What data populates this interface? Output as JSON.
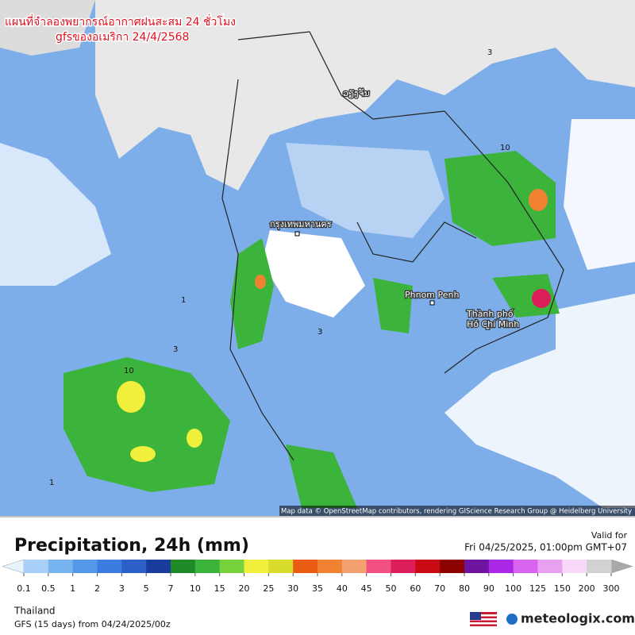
{
  "map": {
    "title_lines": [
      "แผนที่จำลองพยากรณ์อากาศฝนสะสม 24 ชั่วโมง",
      "gfsของอเมริกา 24/4/2568"
    ],
    "place_labels": [
      "ວຽງຈັນ",
      "กรุงเทพมหานคร",
      "Phnom Penh",
      "Thành phố",
      "Hồ Chí Minh"
    ],
    "contour_labels": [
      "10",
      "1",
      "3",
      "10",
      "3",
      "1",
      "3"
    ],
    "attribution": "Map data © OpenStreetMap contributors, rendering GIScience Research Group @ Heidelberg University"
  },
  "legend": {
    "title": "Precipitation, 24h (mm)",
    "valid_label": "Valid for",
    "valid_time": "Fri 04/25/2025, 01:00pm GMT+07",
    "scale_labels": [
      "0.1",
      "0.5",
      "1",
      "2",
      "3",
      "5",
      "7",
      "10",
      "15",
      "20",
      "25",
      "30",
      "35",
      "40",
      "45",
      "50",
      "60",
      "70",
      "80",
      "90",
      "100",
      "125",
      "150",
      "200",
      "300"
    ],
    "scale_colors": [
      "#a8d0f8",
      "#78b4f0",
      "#5498ea",
      "#3c7ce0",
      "#2c60c8",
      "#1a3c9c",
      "#1e8a28",
      "#3cb43c",
      "#78d23c",
      "#f0f03c",
      "#d8dc2c",
      "#e85c14",
      "#f08232",
      "#f4a070",
      "#f05082",
      "#dc1e5a",
      "#c80a14",
      "#8c0000",
      "#6e14a0",
      "#aa28e6",
      "#d864f0",
      "#e8a0f0",
      "#f8d8f8",
      "#d2d2d2"
    ],
    "under_color": "#e8f4fc",
    "over_color": "#a8a8a8"
  },
  "footer": {
    "region": "Thailand",
    "model": "GFS (15 days) from 04/24/2025/00z",
    "brand": "meteologix.com"
  }
}
